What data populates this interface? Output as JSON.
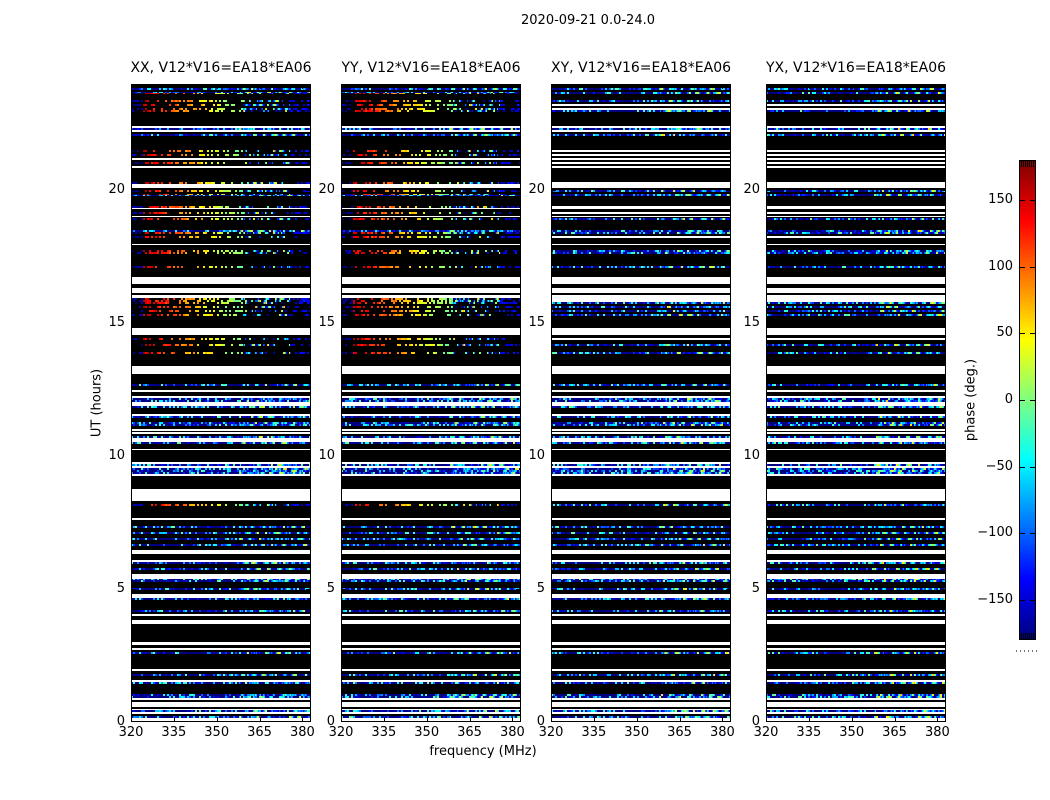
{
  "figure": {
    "suptitle": "2020-09-21 0.0-24.0",
    "xlabel": "frequency (MHz)",
    "ylabel": "UT (hours)"
  },
  "panels": [
    {
      "title": "XX, V12*V16=EA18*EA06",
      "pol": "XX",
      "kind": "parallel",
      "seed": 11
    },
    {
      "title": "YY, V12*V16=EA18*EA06",
      "pol": "YY",
      "kind": "parallel",
      "seed": 23
    },
    {
      "title": "XY, V12*V16=EA18*EA06",
      "pol": "XY",
      "kind": "cross",
      "seed": 37
    },
    {
      "title": "YX, V12*V16=EA18*EA06",
      "pol": "YX",
      "kind": "cross",
      "seed": 53
    }
  ],
  "axes": {
    "x_ticks": [
      "320",
      "335",
      "350",
      "365",
      "380"
    ],
    "x_tick_values": [
      320,
      335,
      350,
      365,
      380
    ],
    "x_range": [
      320,
      383
    ],
    "y_ticks": [
      "0",
      "5",
      "10",
      "15",
      "20"
    ],
    "y_tick_values": [
      0,
      5,
      10,
      15,
      20
    ],
    "y_range": [
      0,
      24
    ]
  },
  "colorbar": {
    "label": "phase (deg.)",
    "ticks": [
      "150",
      "100",
      "50",
      "0",
      "−50",
      "−100",
      "−150"
    ],
    "tick_values": [
      150,
      100,
      50,
      0,
      -50,
      -100,
      -150
    ],
    "vmin": -180,
    "vmax": 180,
    "colormap": "jet"
  },
  "chart_data": {
    "type": "heatmap",
    "title": "2020-09-21 0.0-24.0",
    "subplots": [
      "XX, V12*V16=EA18*EA06",
      "YY, V12*V16=EA18*EA06",
      "XY, V12*V16=EA18*EA06",
      "YX, V12*V16=EA18*EA06"
    ],
    "xlabel": "frequency (MHz)",
    "ylabel": "UT (hours)",
    "zlabel": "phase (deg.)",
    "x_range_mhz": [
      320,
      383
    ],
    "y_range_hours": [
      0,
      24
    ],
    "z_range_deg": [
      -180,
      180
    ],
    "colormap": "jet",
    "legend_position": "right-colorbar",
    "grid": false,
    "description": "Visibility phase vs frequency (x) and UT time (y, 0h bottom to 24h top) for baseline V12*V16=EA18*EA06. Parallel-hand panels (XX,YY) show smooth wrapped-phase frequency gradients (blue>red>orange>yellow>green then fringing then blue) during calibrator scans; cross-hand panels (XY,YX) show random phase noise everywhere. Black rows are flagged/zero scans, white rows are data gaps. Band list below gives [t_start_hr, t_end_hr, type] shared by all panels.",
    "bands": [
      [
        0.0,
        0.5,
        "noise"
      ],
      [
        0.5,
        0.58,
        "black"
      ],
      [
        0.58,
        1.9,
        "noise"
      ],
      [
        1.9,
        2.0,
        "white"
      ],
      [
        2.0,
        2.8,
        "noise"
      ],
      [
        2.8,
        2.88,
        "black"
      ],
      [
        2.88,
        3.02,
        "white"
      ],
      [
        3.02,
        3.12,
        "noise"
      ],
      [
        3.12,
        3.22,
        "black"
      ],
      [
        3.22,
        3.35,
        "noise"
      ],
      [
        3.35,
        3.42,
        "black"
      ],
      [
        3.42,
        4.38,
        "noise"
      ],
      [
        4.38,
        4.48,
        "black"
      ],
      [
        4.48,
        5.38,
        "noise"
      ],
      [
        5.38,
        5.48,
        "white"
      ],
      [
        5.48,
        6.68,
        "noise"
      ],
      [
        6.68,
        6.8,
        "black"
      ],
      [
        6.8,
        7.9,
        "noise"
      ],
      [
        7.9,
        8.06,
        "black"
      ],
      [
        8.06,
        8.32,
        "grad"
      ],
      [
        8.32,
        8.75,
        "white"
      ],
      [
        8.75,
        8.95,
        "black"
      ],
      [
        8.95,
        10.28,
        "noise"
      ],
      [
        10.28,
        10.38,
        "black"
      ],
      [
        10.38,
        10.94,
        "noise"
      ],
      [
        10.94,
        11.04,
        "white"
      ],
      [
        11.04,
        11.14,
        "black"
      ],
      [
        11.14,
        13.1,
        "noise"
      ],
      [
        13.1,
        13.38,
        "white"
      ],
      [
        13.38,
        13.85,
        "black"
      ],
      [
        13.85,
        14.55,
        "grad"
      ],
      [
        14.55,
        14.78,
        "white"
      ],
      [
        14.78,
        15.04,
        "noise"
      ],
      [
        15.04,
        15.28,
        "black"
      ],
      [
        15.28,
        15.95,
        "grad"
      ],
      [
        15.95,
        16.08,
        "white"
      ],
      [
        16.08,
        16.14,
        "noise"
      ],
      [
        16.14,
        16.34,
        "white"
      ],
      [
        16.34,
        16.54,
        "noise"
      ],
      [
        16.54,
        16.74,
        "white"
      ],
      [
        16.74,
        16.94,
        "black"
      ],
      [
        16.94,
        17.28,
        "grad"
      ],
      [
        17.28,
        17.48,
        "noise"
      ],
      [
        17.48,
        17.93,
        "grad"
      ],
      [
        17.93,
        18.0,
        "white"
      ],
      [
        18.0,
        18.44,
        "grad"
      ],
      [
        18.44,
        18.74,
        "noise"
      ],
      [
        18.74,
        18.99,
        "grad"
      ],
      [
        18.99,
        19.05,
        "white"
      ],
      [
        19.05,
        19.28,
        "grad"
      ],
      [
        19.28,
        19.34,
        "white"
      ],
      [
        19.34,
        19.64,
        "grad"
      ],
      [
        19.64,
        19.84,
        "noise"
      ],
      [
        19.84,
        20.1,
        "grad"
      ],
      [
        20.1,
        20.24,
        "white"
      ],
      [
        20.24,
        20.84,
        "grad"
      ],
      [
        20.84,
        20.9,
        "white"
      ],
      [
        20.9,
        21.14,
        "grad"
      ],
      [
        21.14,
        21.2,
        "white"
      ],
      [
        21.2,
        21.58,
        "grad"
      ],
      [
        21.58,
        21.74,
        "black"
      ],
      [
        21.74,
        22.7,
        "noise"
      ],
      [
        22.7,
        22.84,
        "black"
      ],
      [
        22.84,
        23.68,
        "grad"
      ],
      [
        23.68,
        24.0,
        "noise"
      ]
    ]
  }
}
